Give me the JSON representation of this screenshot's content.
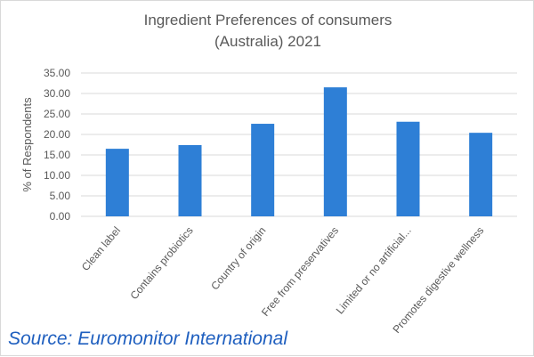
{
  "chart_data": {
    "type": "bar",
    "title_lines": [
      "Ingredient Preferences of consumers",
      "(Australia) 2021"
    ],
    "xlabel": "",
    "ylabel": "% of Respondents",
    "categories": [
      "Clean label",
      "Contains probiotics",
      "Country of origin",
      "Free from preservatives",
      "Limited or no artificial...",
      "Promotes digestive wellness"
    ],
    "series": [
      {
        "values": [
          16.5,
          17.4,
          22.6,
          31.5,
          23.1,
          20.4
        ]
      }
    ],
    "ylim": [
      0,
      35
    ],
    "yticks": [
      "0.00",
      "5.00",
      "10.00",
      "15.00",
      "20.00",
      "25.00",
      "30.00",
      "35.00"
    ],
    "grid": true,
    "legend": "none",
    "bar_color": "#2E7FD6"
  },
  "source": "Source: Euromonitor International"
}
